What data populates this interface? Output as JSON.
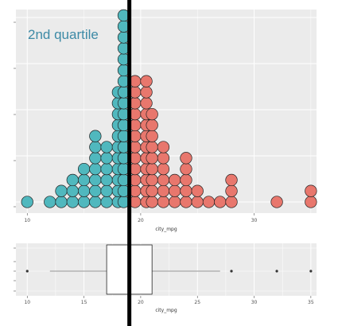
{
  "colors": {
    "panel_bg": "#ebebeb",
    "grid": "#ffffff",
    "lower_half": "#50b8be",
    "upper_half": "#e8776d",
    "dot_outline": "#222222",
    "median_line": "#000000",
    "annotation": "#3d8aa6",
    "whisker": "#b3b3b3"
  },
  "chart_data": [
    {
      "type": "dotplot",
      "annotation": "2nd quartile",
      "xlabel": "city_mpg",
      "ylabel": "",
      "xlim": [
        9,
        35.5
      ],
      "x_ticks": [
        10,
        20,
        30
      ],
      "grid": true,
      "median": 19,
      "series": [
        {
          "name": "",
          "color": "#50b8be",
          "points": [
            {
              "x": 10,
              "count": 1
            },
            {
              "x": 12,
              "count": 1
            },
            {
              "x": 13,
              "count": 2
            },
            {
              "x": 14,
              "count": 3
            },
            {
              "x": 15,
              "count": 4
            },
            {
              "x": 16,
              "count": 7
            },
            {
              "x": 17,
              "count": 6
            },
            {
              "x": 18,
              "count": 11
            },
            {
              "x": 18.5,
              "count": 18
            }
          ]
        },
        {
          "name": "",
          "color": "#e8776d",
          "points": [
            {
              "x": 19.5,
              "count": 12
            },
            {
              "x": 20.5,
              "count": 12
            },
            {
              "x": 21,
              "count": 9
            },
            {
              "x": 22,
              "count": 6
            },
            {
              "x": 23,
              "count": 3
            },
            {
              "x": 24,
              "count": 5
            },
            {
              "x": 25,
              "count": 2
            },
            {
              "x": 26,
              "count": 1
            },
            {
              "x": 27,
              "count": 1
            },
            {
              "x": 28,
              "count": 3
            },
            {
              "x": 32,
              "count": 1
            },
            {
              "x": 35,
              "count": 2
            }
          ]
        }
      ]
    },
    {
      "type": "boxplot",
      "xlabel": "city_mpg",
      "ylabel": "",
      "xlim": [
        9,
        35.5
      ],
      "x_ticks": [
        10,
        15,
        20,
        25,
        30,
        35
      ],
      "grid": true,
      "whisker_low": 12,
      "q1": 17,
      "median": 19,
      "q3": 21,
      "whisker_high": 27,
      "outliers": [
        10,
        28,
        32,
        35
      ]
    }
  ]
}
